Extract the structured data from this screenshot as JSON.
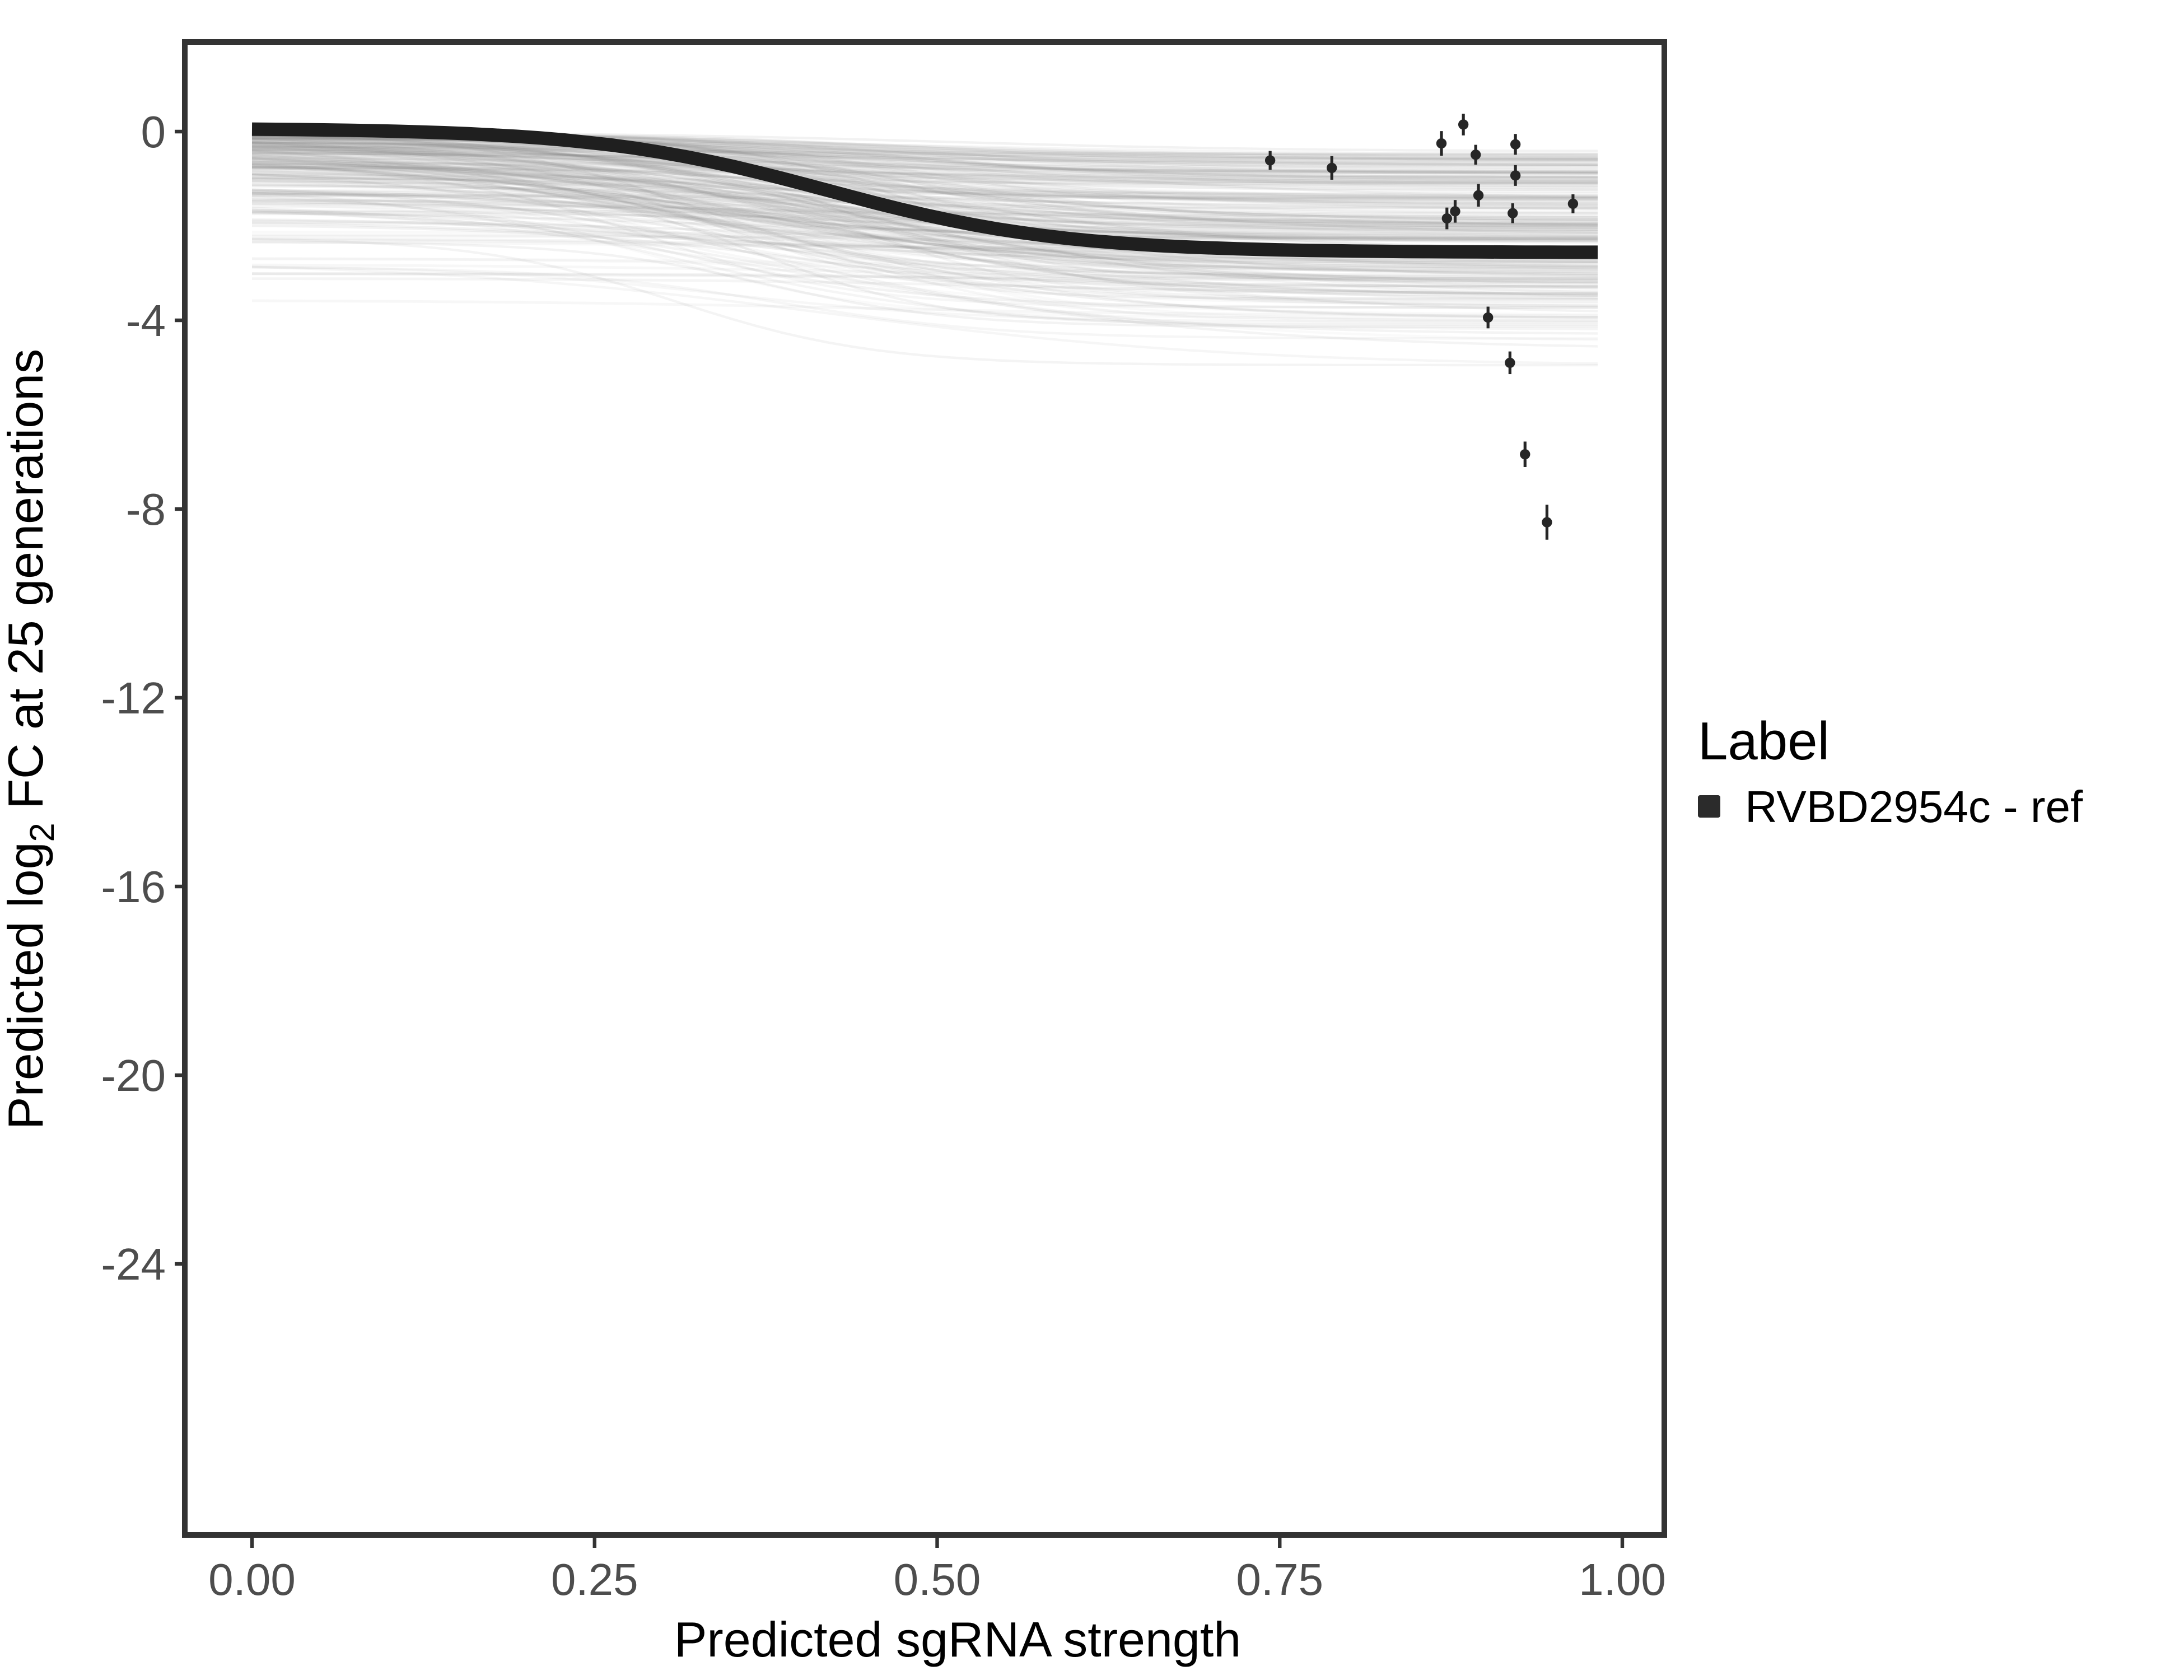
{
  "figure": {
    "background": "#ffffff"
  },
  "chart_data": {
    "type": "line",
    "title": "",
    "xlabel": "Predicted sgRNA strength",
    "ylabel_parts": [
      {
        "text": "Predicted  log",
        "subscript": false
      },
      {
        "text": "2",
        "subscript": true
      },
      {
        "text": " FC at 25 generations",
        "subscript": false
      }
    ],
    "x_tick_labels": [
      "0.00",
      "0.25",
      "0.50",
      "0.75",
      "1.00"
    ],
    "x_tick_values": [
      0,
      0.25,
      0.5,
      0.75,
      1.0
    ],
    "y_tick_labels": [
      "0",
      "-4",
      "-8",
      "-12",
      "-16",
      "-20",
      "-24"
    ],
    "y_tick_values": [
      0,
      -4,
      -8,
      -12,
      -16,
      -20,
      -24
    ],
    "xlim": [
      -0.049,
      1.031
    ],
    "ylim": [
      1.9,
      -29.75
    ],
    "grid": "off",
    "legend_position": "right",
    "x_data_range": [
      0.0,
      0.982
    ],
    "ref_curve": {
      "label": "RVBD2954c - ref",
      "color": "#1f1f1f",
      "top": 0.07,
      "bottom": -2.56,
      "midpoint": 0.42,
      "slope": 0.085
    },
    "points": {
      "color": "#262626",
      "items": [
        {
          "x": 0.743,
          "y": -0.61,
          "err": 0.2
        },
        {
          "x": 0.788,
          "y": -0.77,
          "err": 0.25
        },
        {
          "x": 0.868,
          "y": -0.25,
          "err": 0.26
        },
        {
          "x": 0.884,
          "y": 0.15,
          "err": 0.23
        },
        {
          "x": 0.893,
          "y": -0.49,
          "err": 0.21
        },
        {
          "x": 0.895,
          "y": -1.35,
          "err": 0.24
        },
        {
          "x": 0.878,
          "y": -1.69,
          "err": 0.24
        },
        {
          "x": 0.872,
          "y": -1.84,
          "err": 0.23
        },
        {
          "x": 0.922,
          "y": -0.27,
          "err": 0.22
        },
        {
          "x": 0.922,
          "y": -0.93,
          "err": 0.22
        },
        {
          "x": 0.92,
          "y": -1.73,
          "err": 0.21
        },
        {
          "x": 0.964,
          "y": -1.53,
          "err": 0.2
        },
        {
          "x": 0.902,
          "y": -3.94,
          "err": 0.23
        },
        {
          "x": 0.918,
          "y": -4.9,
          "err": 0.24
        },
        {
          "x": 0.929,
          "y": -6.84,
          "err": 0.27
        },
        {
          "x": 0.945,
          "y": -8.28,
          "err": 0.37
        }
      ]
    },
    "posterior_draws": {
      "count": 260,
      "flat_count": 24,
      "seed": 20954,
      "color": "#808080",
      "flat_color": "#9a9a9a",
      "top_range": [
        0,
        -3.6
      ],
      "drop_range": [
        0.35,
        3.25
      ],
      "bottom_clip": -5.15,
      "midpoint_range": [
        0.28,
        0.52
      ],
      "slope_range": [
        0.065,
        0.155
      ],
      "opacity_range": [
        0.04,
        0.11
      ]
    },
    "legend": {
      "title": "Label",
      "items": [
        {
          "label": "RVBD2954c - ref",
          "key_color": "#2b2b2b"
        }
      ]
    },
    "axis": {
      "border_color": "#333333",
      "tick_color": "#333333",
      "tick_label_color": "#4d4d4d",
      "title_color": "#000000"
    }
  }
}
